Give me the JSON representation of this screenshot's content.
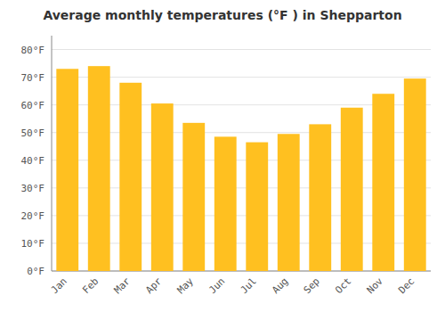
{
  "chart_data": {
    "type": "bar",
    "title": "Average monthly temperatures (°F ) in Shepparton",
    "categories": [
      "Jan",
      "Feb",
      "Mar",
      "Apr",
      "May",
      "Jun",
      "Jul",
      "Aug",
      "Sep",
      "Oct",
      "Nov",
      "Dec"
    ],
    "values": [
      73,
      74,
      68,
      60.5,
      53.5,
      48.5,
      46.5,
      49.5,
      53,
      59,
      64,
      69.5
    ],
    "color": "#FFC020",
    "ylim": [
      0,
      85
    ],
    "yticks": [
      {
        "value": 0,
        "label": "0°F"
      },
      {
        "value": 10,
        "label": "10°F"
      },
      {
        "value": 20,
        "label": "20°F"
      },
      {
        "value": 30,
        "label": "30°F"
      },
      {
        "value": 40,
        "label": "40°F"
      },
      {
        "value": 50,
        "label": "50°F"
      },
      {
        "value": 60,
        "label": "60°F"
      },
      {
        "value": 70,
        "label": "70°F"
      },
      {
        "value": 80,
        "label": "80°F"
      }
    ],
    "grid": true
  }
}
